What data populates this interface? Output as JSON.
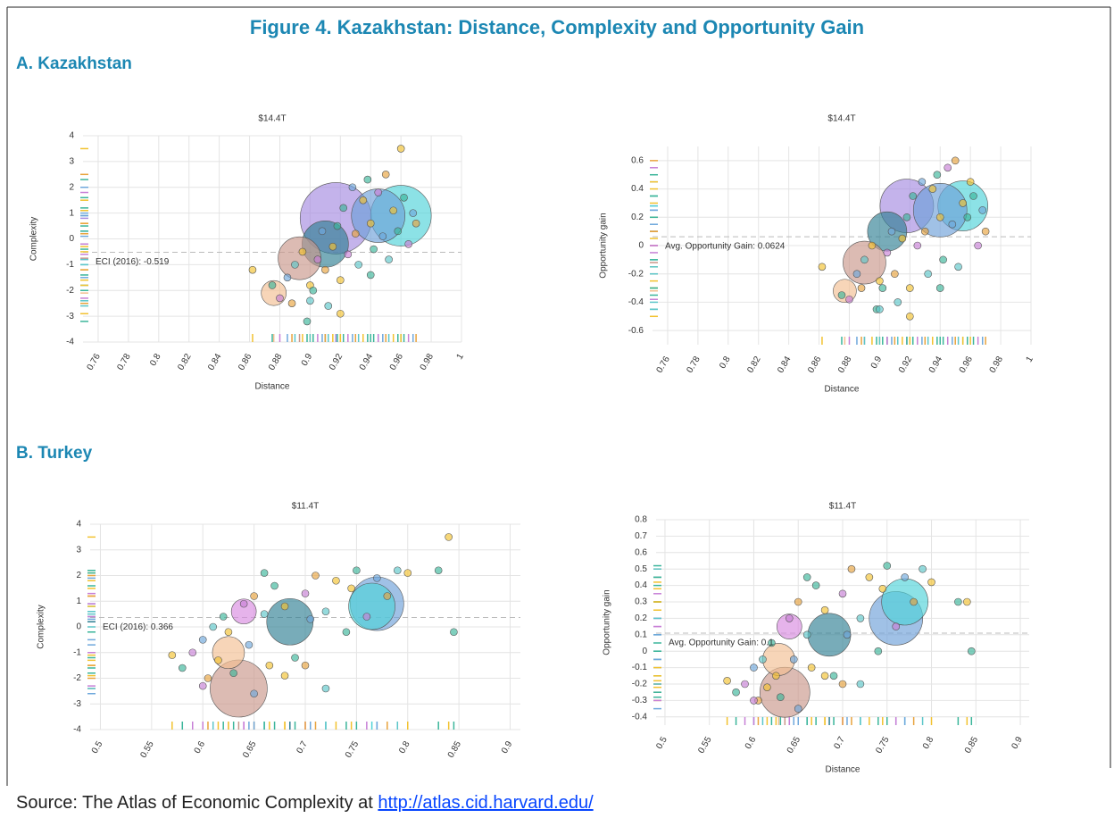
{
  "figure_title": "Figure 4. Kazakhstan: Distance, Complexity and Opportunity Gain",
  "panel_labels": [
    "A. Kazakhstan",
    "B. Turkey"
  ],
  "source": {
    "text": "Source: The Atlas of Economic Complexity at",
    "link": "http://atlas.cid.harvard.edu/"
  },
  "chart_data": [
    {
      "type": "scatter",
      "title": "$14.4T",
      "xlabel": "Distance",
      "ylabel": "Complexity",
      "xlim": [
        0.75,
        1.0
      ],
      "ylim": [
        -4,
        4
      ],
      "xticks": [
        0.76,
        0.78,
        0.8,
        0.82,
        0.84,
        0.86,
        0.88,
        0.9,
        0.92,
        0.94,
        0.96,
        0.98,
        1
      ],
      "yticks": [
        -4,
        -3,
        -2,
        -1,
        0,
        1,
        2,
        3,
        4
      ],
      "reference_line": {
        "value": -0.519,
        "label": "ECI (2016): -0.519"
      },
      "x": [
        0.917,
        0.96,
        0.945,
        0.91,
        0.893,
        0.876,
        0.862,
        0.875,
        0.88,
        0.885,
        0.888,
        0.89,
        0.895,
        0.898,
        0.9,
        0.902,
        0.905,
        0.908,
        0.91,
        0.912,
        0.915,
        0.918,
        0.92,
        0.922,
        0.925,
        0.928,
        0.93,
        0.932,
        0.935,
        0.938,
        0.94,
        0.942,
        0.945,
        0.948,
        0.95,
        0.952,
        0.955,
        0.958,
        0.96,
        0.962,
        0.965,
        0.968,
        0.97,
        0.9,
        0.92,
        0.94
      ],
      "values": [
        0.8,
        0.9,
        0.9,
        -0.2,
        -0.75,
        -2.1,
        -1.2,
        -1.8,
        -2.3,
        -1.5,
        -2.5,
        -1.0,
        -0.5,
        -3.2,
        -1.8,
        -2.0,
        -0.8,
        0.3,
        -1.2,
        -2.6,
        -0.3,
        0.5,
        -1.6,
        1.2,
        -0.6,
        2.0,
        0.2,
        -1.0,
        1.5,
        2.3,
        0.6,
        -0.4,
        1.8,
        0.1,
        2.5,
        -0.8,
        1.1,
        0.3,
        3.5,
        1.6,
        -0.2,
        1.0,
        0.6,
        -2.4,
        -2.9,
        -1.4
      ],
      "sizes": [
        40,
        34,
        30,
        26,
        24,
        14,
        4,
        4,
        4,
        4,
        4,
        4,
        4,
        4,
        4,
        4,
        4,
        4,
        4,
        4,
        4,
        4,
        4,
        4,
        4,
        4,
        4,
        4,
        4,
        4,
        4,
        4,
        4,
        4,
        4,
        4,
        4,
        4,
        4,
        4,
        4,
        4,
        4,
        4,
        4,
        4
      ],
      "colors": [
        "#a58be0",
        "#4fd3d8",
        "#6d9fd8",
        "#2f7f93",
        "#c9978a",
        "#f2bf92",
        "#f2c230",
        "#3bb59a",
        "#c77fd6",
        "#6fa8dc",
        "#e8a33d",
        "#5cc6c9",
        "#f2c230",
        "#3bb59a",
        "#f2c230",
        "#3bb59a",
        "#c77fd6",
        "#6fa8dc",
        "#e8a33d",
        "#5cc6c9",
        "#f2c230",
        "#3bb59a",
        "#f2c230",
        "#3bb59a",
        "#c77fd6",
        "#6fa8dc",
        "#e8a33d",
        "#5cc6c9",
        "#f2c230",
        "#3bb59a",
        "#f2c230",
        "#3bb59a",
        "#c77fd6",
        "#6fa8dc",
        "#e8a33d",
        "#5cc6c9",
        "#f2c230",
        "#3bb59a",
        "#f2c230",
        "#3bb59a",
        "#c77fd6",
        "#6fa8dc",
        "#e8a33d",
        "#5cc6c9",
        "#f2c230",
        "#3bb59a"
      ]
    },
    {
      "type": "scatter",
      "title": "$14.4T",
      "xlabel": "Distance",
      "ylabel": "Opportunity gain",
      "xlim": [
        0.75,
        1.0
      ],
      "ylim": [
        -0.7,
        0.7
      ],
      "xticks": [
        0.76,
        0.78,
        0.8,
        0.82,
        0.84,
        0.86,
        0.88,
        0.9,
        0.92,
        0.94,
        0.96,
        0.98,
        1
      ],
      "yticks": [
        -0.6,
        -0.4,
        -0.2,
        0,
        0.2,
        0.4,
        0.6
      ],
      "reference_line": {
        "value": 0.0624,
        "label": "Avg. Opportunity Gain: 0.0624"
      },
      "x": [
        0.918,
        0.955,
        0.94,
        0.905,
        0.89,
        0.877,
        0.862,
        0.875,
        0.88,
        0.885,
        0.888,
        0.89,
        0.895,
        0.898,
        0.9,
        0.902,
        0.905,
        0.908,
        0.91,
        0.912,
        0.915,
        0.918,
        0.92,
        0.922,
        0.925,
        0.928,
        0.93,
        0.932,
        0.935,
        0.938,
        0.94,
        0.942,
        0.945,
        0.948,
        0.95,
        0.952,
        0.955,
        0.958,
        0.96,
        0.962,
        0.965,
        0.968,
        0.97,
        0.9,
        0.92,
        0.94
      ],
      "values": [
        0.28,
        0.28,
        0.25,
        0.1,
        -0.12,
        -0.32,
        -0.15,
        -0.35,
        -0.38,
        -0.2,
        -0.3,
        -0.1,
        0,
        -0.45,
        -0.25,
        -0.3,
        -0.05,
        0.1,
        -0.2,
        -0.4,
        0.05,
        0.2,
        -0.3,
        0.35,
        0,
        0.45,
        0.1,
        -0.2,
        0.4,
        0.5,
        0.2,
        -0.1,
        0.55,
        0.15,
        0.6,
        -0.15,
        0.3,
        0.2,
        0.45,
        0.35,
        0,
        0.25,
        0.1,
        -0.45,
        -0.5,
        -0.3
      ],
      "sizes": [
        30,
        28,
        30,
        22,
        24,
        13,
        4,
        4,
        4,
        4,
        4,
        4,
        4,
        4,
        4,
        4,
        4,
        4,
        4,
        4,
        4,
        4,
        4,
        4,
        4,
        4,
        4,
        4,
        4,
        4,
        4,
        4,
        4,
        4,
        4,
        4,
        4,
        4,
        4,
        4,
        4,
        4,
        4,
        4,
        4,
        4
      ],
      "colors": [
        "#a58be0",
        "#4fd3d8",
        "#6d9fd8",
        "#2f7f93",
        "#c9978a",
        "#f2bf92",
        "#f2c230",
        "#3bb59a",
        "#c77fd6",
        "#6fa8dc",
        "#e8a33d",
        "#5cc6c9",
        "#f2c230",
        "#3bb59a",
        "#f2c230",
        "#3bb59a",
        "#c77fd6",
        "#6fa8dc",
        "#e8a33d",
        "#5cc6c9",
        "#f2c230",
        "#3bb59a",
        "#f2c230",
        "#3bb59a",
        "#c77fd6",
        "#6fa8dc",
        "#e8a33d",
        "#5cc6c9",
        "#f2c230",
        "#3bb59a",
        "#f2c230",
        "#3bb59a",
        "#c77fd6",
        "#6fa8dc",
        "#e8a33d",
        "#5cc6c9",
        "#f2c230",
        "#3bb59a",
        "#f2c230",
        "#3bb59a",
        "#c77fd6",
        "#6fa8dc",
        "#e8a33d",
        "#5cc6c9",
        "#f2c230",
        "#3bb59a"
      ]
    },
    {
      "type": "scatter",
      "title": "$11.4T",
      "ylabel": "Complexity",
      "xlim": [
        0.49,
        0.91
      ],
      "ylim": [
        -4,
        4
      ],
      "xticks": [
        0.5,
        0.55,
        0.6,
        0.65,
        0.7,
        0.75,
        0.8,
        0.85,
        0.9
      ],
      "yticks": [
        -4,
        -3,
        -2,
        -1,
        0,
        1,
        2,
        3,
        4
      ],
      "reference_line": {
        "value": 0.366,
        "label": "ECI (2016): 0.366"
      },
      "x": [
        0.77,
        0.765,
        0.685,
        0.64,
        0.635,
        0.625,
        0.57,
        0.58,
        0.59,
        0.6,
        0.605,
        0.61,
        0.615,
        0.62,
        0.625,
        0.63,
        0.64,
        0.645,
        0.65,
        0.66,
        0.665,
        0.67,
        0.68,
        0.69,
        0.7,
        0.705,
        0.71,
        0.72,
        0.73,
        0.74,
        0.745,
        0.75,
        0.76,
        0.77,
        0.78,
        0.79,
        0.8,
        0.83,
        0.84,
        0.845,
        0.6,
        0.65,
        0.7,
        0.72,
        0.68,
        0.66
      ],
      "values": [
        0.9,
        0.8,
        0.2,
        0.6,
        -2.4,
        -1.0,
        -1.1,
        -1.6,
        -1.0,
        -0.5,
        -2.0,
        0,
        -1.3,
        0.4,
        -0.2,
        -1.8,
        0.9,
        -0.7,
        1.2,
        0.5,
        -1.5,
        1.6,
        0.8,
        -1.2,
        1.3,
        0.3,
        2.0,
        0.6,
        1.8,
        -0.2,
        1.5,
        2.2,
        0.4,
        1.9,
        1.2,
        2.2,
        2.1,
        2.2,
        3.5,
        -0.2,
        -2.3,
        -2.6,
        -1.5,
        -2.4,
        -1.9,
        2.1
      ],
      "sizes": [
        30,
        26,
        26,
        14,
        32,
        18,
        4,
        4,
        4,
        4,
        4,
        4,
        4,
        4,
        4,
        4,
        4,
        4,
        4,
        4,
        4,
        4,
        4,
        4,
        4,
        4,
        4,
        4,
        4,
        4,
        4,
        4,
        4,
        4,
        4,
        4,
        4,
        4,
        4,
        4,
        4,
        4,
        4,
        4,
        4,
        4
      ],
      "colors": [
        "#6d9fd8",
        "#4fd3d8",
        "#2f7f93",
        "#d98be0",
        "#c9978a",
        "#f2bf92",
        "#f2c230",
        "#3bb59a",
        "#c77fd6",
        "#6fa8dc",
        "#e8a33d",
        "#5cc6c9",
        "#f2c230",
        "#3bb59a",
        "#f2c230",
        "#3bb59a",
        "#c77fd6",
        "#6fa8dc",
        "#e8a33d",
        "#5cc6c9",
        "#f2c230",
        "#3bb59a",
        "#f2c230",
        "#3bb59a",
        "#c77fd6",
        "#6fa8dc",
        "#e8a33d",
        "#5cc6c9",
        "#f2c230",
        "#3bb59a",
        "#f2c230",
        "#3bb59a",
        "#c77fd6",
        "#6fa8dc",
        "#e8a33d",
        "#5cc6c9",
        "#f2c230",
        "#3bb59a",
        "#f2c230",
        "#3bb59a",
        "#c77fd6",
        "#6fa8dc",
        "#e8a33d",
        "#5cc6c9",
        "#f2c230",
        "#3bb59a"
      ]
    },
    {
      "type": "scatter",
      "title": "$11.4T",
      "xlabel": "Distance",
      "ylabel": "Opportunity gain",
      "xlim": [
        0.49,
        0.91
      ],
      "ylim": [
        -0.45,
        0.8
      ],
      "xticks": [
        0.5,
        0.55,
        0.6,
        0.65,
        0.7,
        0.75,
        0.8,
        0.85,
        0.9
      ],
      "yticks": [
        -0.4,
        -0.3,
        -0.2,
        -0.1,
        0,
        0.1,
        0.2,
        0.3,
        0.4,
        0.5,
        0.6,
        0.7,
        0.8
      ],
      "reference_line": {
        "value": 0.11,
        "label": "Avg. Opportunity Gain: 0.1"
      },
      "x": [
        0.76,
        0.77,
        0.685,
        0.64,
        0.635,
        0.628,
        0.57,
        0.58,
        0.59,
        0.6,
        0.605,
        0.61,
        0.615,
        0.62,
        0.625,
        0.63,
        0.64,
        0.645,
        0.65,
        0.66,
        0.665,
        0.67,
        0.68,
        0.69,
        0.7,
        0.705,
        0.71,
        0.72,
        0.73,
        0.74,
        0.745,
        0.75,
        0.76,
        0.77,
        0.78,
        0.79,
        0.8,
        0.83,
        0.84,
        0.845,
        0.6,
        0.65,
        0.7,
        0.72,
        0.68,
        0.66
      ],
      "values": [
        0.2,
        0.3,
        0.1,
        0.15,
        -0.25,
        -0.05,
        -0.18,
        -0.25,
        -0.2,
        -0.1,
        -0.3,
        -0.05,
        -0.22,
        0.05,
        -0.15,
        -0.28,
        0.2,
        -0.05,
        0.3,
        0.1,
        -0.1,
        0.4,
        0.25,
        -0.15,
        0.35,
        0.1,
        0.5,
        0.2,
        0.45,
        0,
        0.38,
        0.52,
        0.15,
        0.45,
        0.3,
        0.5,
        0.42,
        0.3,
        0.3,
        0,
        -0.3,
        -0.35,
        -0.2,
        -0.2,
        -0.15,
        0.45
      ],
      "sizes": [
        30,
        26,
        24,
        14,
        28,
        18,
        4,
        4,
        4,
        4,
        4,
        4,
        4,
        4,
        4,
        4,
        4,
        4,
        4,
        4,
        4,
        4,
        4,
        4,
        4,
        4,
        4,
        4,
        4,
        4,
        4,
        4,
        4,
        4,
        4,
        4,
        4,
        4,
        4,
        4,
        4,
        4,
        4,
        4,
        4,
        4
      ],
      "colors": [
        "#6d9fd8",
        "#4fd3d8",
        "#2f7f93",
        "#d98be0",
        "#c9978a",
        "#f2bf92",
        "#f2c230",
        "#3bb59a",
        "#c77fd6",
        "#6fa8dc",
        "#e8a33d",
        "#5cc6c9",
        "#f2c230",
        "#3bb59a",
        "#f2c230",
        "#3bb59a",
        "#c77fd6",
        "#6fa8dc",
        "#e8a33d",
        "#5cc6c9",
        "#f2c230",
        "#3bb59a",
        "#f2c230",
        "#3bb59a",
        "#c77fd6",
        "#6fa8dc",
        "#e8a33d",
        "#5cc6c9",
        "#f2c230",
        "#3bb59a",
        "#f2c230",
        "#3bb59a",
        "#c77fd6",
        "#6fa8dc",
        "#e8a33d",
        "#5cc6c9",
        "#f2c230",
        "#3bb59a",
        "#f2c230",
        "#3bb59a",
        "#c77fd6",
        "#6fa8dc",
        "#e8a33d",
        "#5cc6c9",
        "#f2c230",
        "#3bb59a"
      ]
    }
  ]
}
